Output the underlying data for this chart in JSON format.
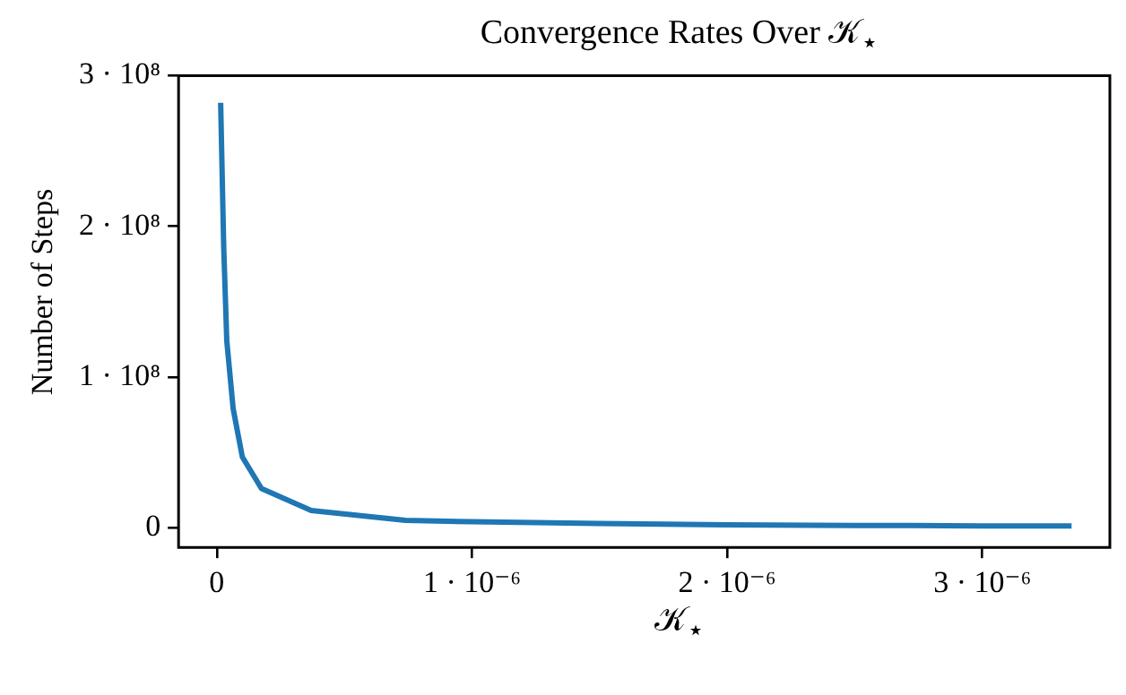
{
  "chart_data": {
    "type": "line",
    "title": "Convergence Rates Over 𝒦$_{⋆}$",
    "xlabel": "𝒦$_{⋆}$",
    "ylabel": "Number of Steps",
    "x": [
      1.5e-08,
      2.7e-08,
      3.9e-08,
      6.4e-08,
      1e-07,
      1.75e-07,
      3.7e-07,
      7.4e-07,
      1e-06,
      1.5e-06,
      2e-06,
      2.5e-06,
      3e-06,
      3.35e-06
    ],
    "series": [
      {
        "color": "#1f77b4",
        "values": [
          282000000.0,
          186000000.0,
          124000000.0,
          79000000.0,
          47000000.0,
          26000000.0,
          11500000.0,
          5000000.0,
          4000000.0,
          2800000.0,
          2000000.0,
          1600000.0,
          1300000.0,
          1200000.0
        ]
      }
    ],
    "xlim": [
      -1.5e-07,
      3.5e-06
    ],
    "ylim": [
      -13000000.0,
      300000000.0
    ],
    "xticks": [
      0,
      {
        "value": 1e-06,
        "label": "1 · 10⁻⁶"
      },
      {
        "value": 2e-06,
        "label": "2 · 10⁻⁶"
      },
      {
        "value": 3e-06,
        "label": "3 · 10⁻⁶"
      }
    ],
    "yticks": [
      0,
      {
        "value": 100000000.0,
        "label": "1 · 10⁸"
      },
      {
        "value": 200000000.0,
        "label": "2 · 10⁸"
      },
      {
        "value": 300000000.0,
        "label": "3 · 10⁸"
      }
    ],
    "grid": false,
    "legend": false,
    "marker": "none",
    "line_style": "solid"
  }
}
